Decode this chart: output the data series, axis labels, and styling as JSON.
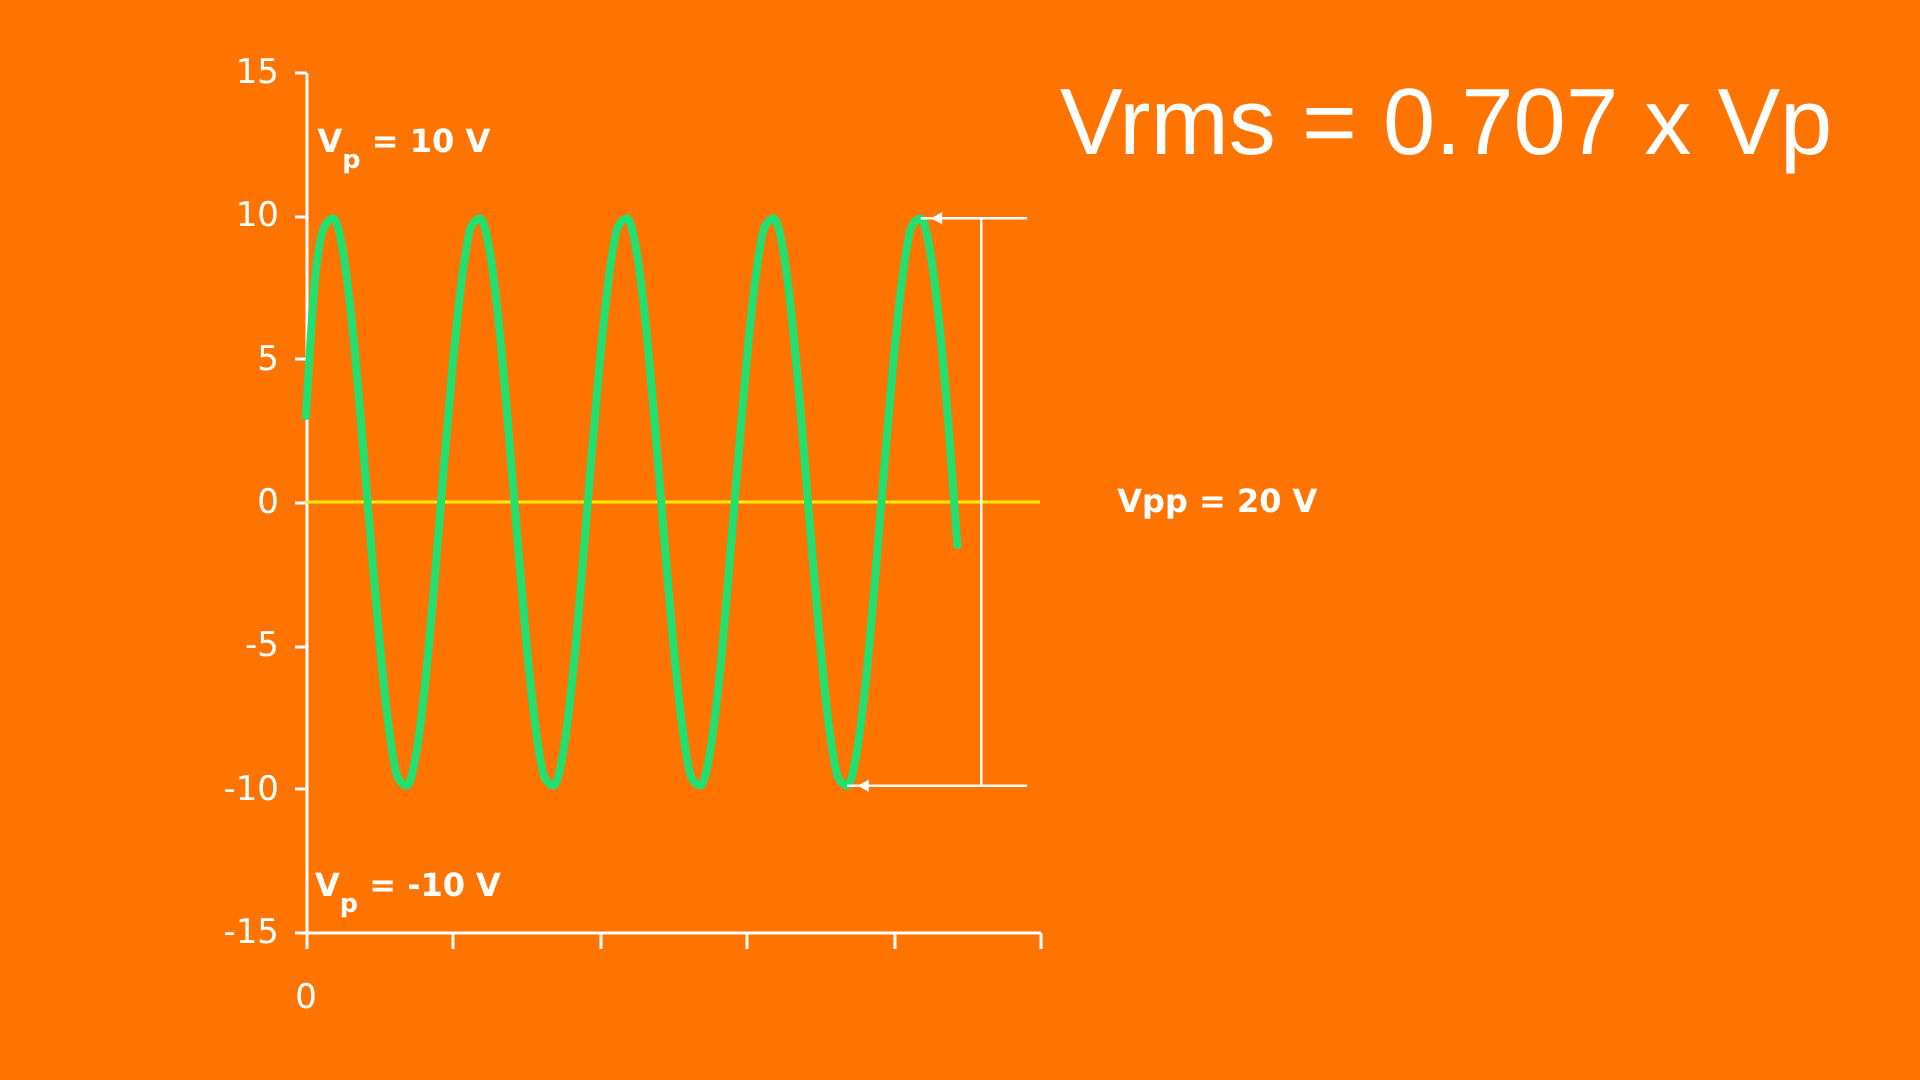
{
  "chart_data": {
    "type": "line",
    "title": "Vrms = 0.707 x Vp",
    "categories": [
      null,
      null,
      null,
      null,
      null,
      null,
      null,
      null,
      null,
      null,
      null,
      null,
      null,
      null,
      null,
      null,
      null,
      null,
      null,
      null,
      null,
      null,
      null,
      null,
      null,
      null,
      null,
      null,
      null,
      null,
      null,
      null,
      null,
      null,
      null,
      null,
      null,
      null,
      null,
      null,
      null,
      null,
      null,
      null,
      null,
      null,
      null,
      null,
      null,
      null,
      null,
      null,
      null,
      null,
      null,
      null,
      null,
      null,
      null,
      null,
      null,
      null,
      null,
      null,
      null,
      null,
      null,
      null,
      null,
      null,
      null,
      null
    ],
    "series": [
      {
        "color": "#22e070",
        "values": [
          3,
          7.8,
          9.6,
          9.9,
          8.8,
          6.3,
          2.8,
          -1.1,
          -4.8,
          -7.8,
          -9.6,
          -9.9,
          -8.8,
          -6.3,
          -2.8,
          1.1,
          4.8,
          7.8,
          9.6,
          9.9,
          8.8,
          6.3,
          2.8,
          -1.1,
          -4.8,
          -7.8,
          -9.6,
          -9.9,
          -8.8,
          -6.3,
          -2.8,
          1.1,
          4.8,
          7.8,
          9.6,
          9.9,
          8.8,
          6.3,
          2.8,
          -1.1,
          -4.8,
          -7.8,
          -9.6,
          -9.9,
          -8.8,
          -6.3,
          -2.8,
          1.1,
          4.8,
          7.8,
          9.6,
          9.9,
          8.8,
          6.3,
          2.8,
          -1.1,
          -4.8,
          -7.8,
          -9.6,
          -9.9,
          -8.8,
          -6.3,
          -2.8,
          1.1,
          4.8,
          7.8,
          9.6,
          9.9,
          8.8,
          6.3,
          2.8,
          -1.5
        ]
      }
    ],
    "ylim": [
      -15,
      15
    ],
    "yticks": [
      -15,
      -10,
      -5,
      0,
      5,
      10,
      15
    ],
    "ref_lines": [
      {
        "axis": "y",
        "value": 0,
        "label": null,
        "color": "#ffee00"
      }
    ],
    "annotations": [
      "V$_{p}$ = 10 V",
      "V$_{p}$ = -10 V",
      "Vpp = 20 V",
      "0"
    ],
    "grid": false,
    "marker": "none",
    "line_style": "solid"
  }
}
